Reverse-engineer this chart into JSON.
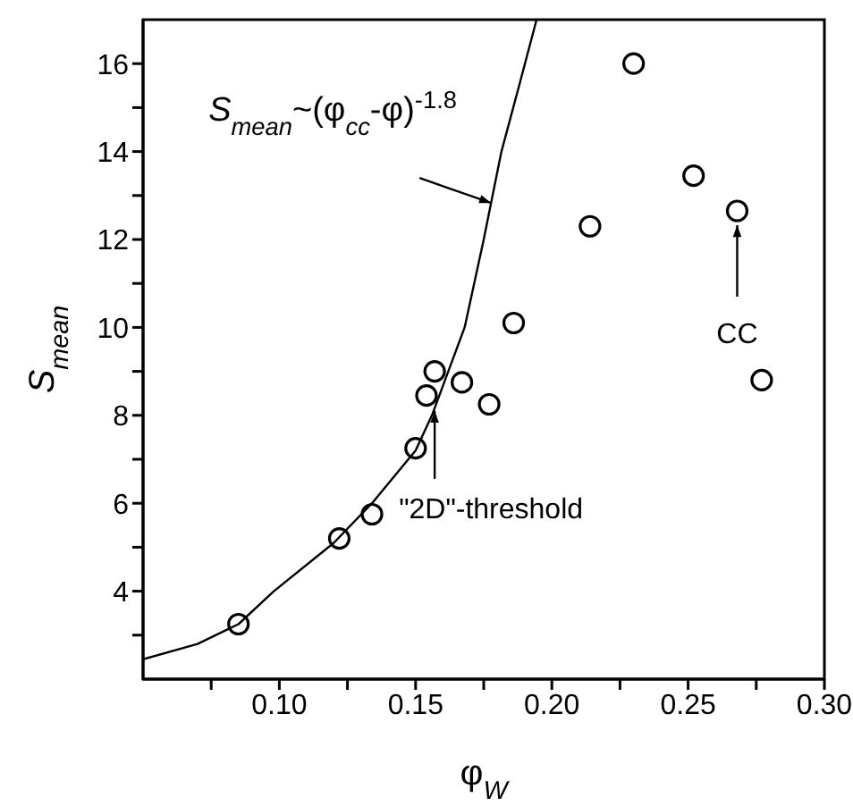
{
  "chart_data": {
    "type": "scatter",
    "xlabel": "φ$_{W}$",
    "ylabel": "S$_{mean}$",
    "xlim": [
      0.05,
      0.3
    ],
    "ylim": [
      2,
      17
    ],
    "xticks": [
      {
        "value": 0.075,
        "label": null
      },
      {
        "value": 0.1,
        "label": "0.10"
      },
      {
        "value": 0.125,
        "label": null
      },
      {
        "value": 0.15,
        "label": "0.15"
      },
      {
        "value": 0.175,
        "label": null
      },
      {
        "value": 0.2,
        "label": "0.20"
      },
      {
        "value": 0.225,
        "label": null
      },
      {
        "value": 0.25,
        "label": "0.25"
      },
      {
        "value": 0.275,
        "label": null
      },
      {
        "value": 0.3,
        "label": "0.30"
      }
    ],
    "yticks": [
      {
        "value": 3,
        "label": null
      },
      4,
      {
        "value": 5,
        "label": null
      },
      6,
      {
        "value": 7,
        "label": null
      },
      8,
      {
        "value": 9,
        "label": null
      },
      10,
      {
        "value": 11,
        "label": null
      },
      12,
      {
        "value": 13,
        "label": null
      },
      14,
      {
        "value": 15,
        "label": null
      },
      16
    ],
    "grid": false,
    "legend": false,
    "series": [
      {
        "color": "#000000",
        "marker": "circle",
        "x": [
          0.085,
          0.122,
          0.134,
          0.15,
          0.154,
          0.157,
          0.167,
          0.177,
          0.186,
          0.214,
          0.23,
          0.252,
          0.268,
          0.277
        ],
        "values": [
          3.25,
          5.2,
          5.75,
          7.25,
          8.45,
          9.0,
          8.75,
          8.25,
          10.1,
          12.3,
          16.0,
          13.45,
          12.65,
          8.8
        ]
      },
      {
        "type": "line",
        "color": "#000000",
        "marker": "none",
        "line_style": "solid",
        "x": [
          0.05,
          0.07,
          0.085,
          0.098,
          0.12,
          0.134,
          0.15,
          0.156,
          0.168,
          0.175,
          0.1815,
          0.188,
          0.1944
        ],
        "values": [
          2.45,
          2.8,
          3.25,
          4.0,
          5.1,
          6.0,
          7.2,
          8.0,
          10.0,
          12.0,
          14.0,
          15.5,
          17.0
        ]
      }
    ],
    "annotations": [
      {
        "text": "S$_{mean}$~(φ$_{cc}$-φ)$^{-1.8}$",
        "x": 0.1777,
        "y": 12.83
      },
      {
        "text": "\"2D\"-threshold",
        "x": 0.157,
        "y": 8.1
      },
      {
        "text": "CC",
        "x": 0.268,
        "y": 12.65
      }
    ]
  }
}
